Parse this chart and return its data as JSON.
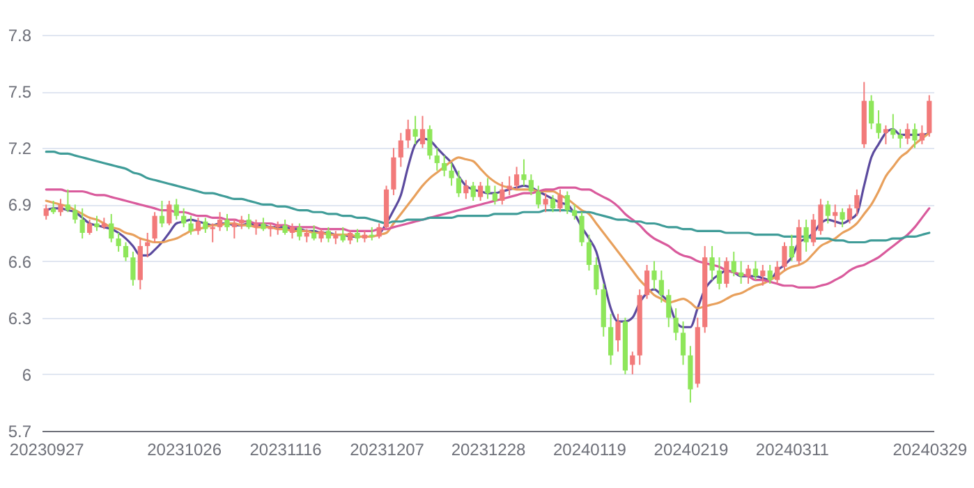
{
  "chart_data": {
    "type": "candlestick",
    "grid": "y",
    "ylim": [
      5.7,
      7.8
    ],
    "yticks": [
      5.7,
      6,
      6.3,
      6.6,
      6.9,
      7.2,
      7.5,
      7.8
    ],
    "categories": [
      "20230927",
      null,
      null,
      null,
      null,
      null,
      null,
      null,
      null,
      null,
      null,
      null,
      null,
      null,
      null,
      null,
      null,
      null,
      null,
      "20231026",
      null,
      null,
      null,
      null,
      null,
      null,
      null,
      null,
      null,
      null,
      null,
      null,
      null,
      "20231116",
      null,
      null,
      null,
      null,
      null,
      null,
      null,
      null,
      null,
      null,
      null,
      null,
      null,
      "20231207",
      null,
      null,
      null,
      null,
      null,
      null,
      null,
      null,
      null,
      null,
      null,
      null,
      null,
      "20231228",
      null,
      null,
      null,
      null,
      null,
      null,
      null,
      null,
      null,
      null,
      null,
      null,
      null,
      "20240119",
      null,
      null,
      null,
      null,
      null,
      null,
      null,
      null,
      null,
      null,
      null,
      null,
      null,
      "20240219",
      null,
      null,
      null,
      null,
      null,
      null,
      null,
      null,
      null,
      null,
      null,
      null,
      null,
      "20240311",
      null,
      null,
      null,
      null,
      null,
      null,
      null,
      null,
      null,
      null,
      null,
      null,
      null,
      null,
      null,
      null,
      null,
      null,
      "20240329"
    ],
    "ohlc": [
      [
        6.84,
        6.9,
        6.82,
        6.88
      ],
      [
        6.88,
        6.92,
        6.85,
        6.86
      ],
      [
        6.86,
        6.93,
        6.84,
        6.9
      ],
      [
        6.9,
        6.98,
        6.86,
        6.87
      ],
      [
        6.87,
        6.9,
        6.8,
        6.82
      ],
      [
        6.82,
        6.88,
        6.72,
        6.75
      ],
      [
        6.75,
        6.82,
        6.74,
        6.8
      ],
      [
        6.8,
        6.84,
        6.76,
        6.78
      ],
      [
        6.78,
        6.83,
        6.77,
        6.8
      ],
      [
        6.8,
        6.85,
        6.7,
        6.72
      ],
      [
        6.72,
        6.75,
        6.65,
        6.68
      ],
      [
        6.68,
        6.7,
        6.6,
        6.62
      ],
      [
        6.62,
        6.65,
        6.47,
        6.5
      ],
      [
        6.5,
        6.72,
        6.45,
        6.68
      ],
      [
        6.68,
        6.75,
        6.62,
        6.7
      ],
      [
        6.72,
        6.86,
        6.7,
        6.84
      ],
      [
        6.84,
        6.92,
        6.78,
        6.8
      ],
      [
        6.8,
        6.92,
        6.79,
        6.9
      ],
      [
        6.9,
        6.93,
        6.82,
        6.84
      ],
      [
        6.84,
        6.88,
        6.78,
        6.8
      ],
      [
        6.8,
        6.84,
        6.74,
        6.76
      ],
      [
        6.76,
        6.83,
        6.74,
        6.81
      ],
      [
        6.81,
        6.83,
        6.75,
        6.77
      ],
      [
        6.77,
        6.8,
        6.7,
        6.78
      ],
      [
        6.78,
        6.86,
        6.76,
        6.82
      ],
      [
        6.82,
        6.85,
        6.76,
        6.78
      ],
      [
        6.78,
        6.82,
        6.72,
        6.8
      ],
      [
        6.8,
        6.84,
        6.77,
        6.82
      ],
      [
        6.82,
        6.85,
        6.77,
        6.78
      ],
      [
        6.78,
        6.82,
        6.74,
        6.8
      ],
      [
        6.8,
        6.83,
        6.76,
        6.77
      ],
      [
        6.77,
        6.8,
        6.73,
        6.78
      ],
      [
        6.78,
        6.81,
        6.74,
        6.79
      ],
      [
        6.79,
        6.82,
        6.74,
        6.75
      ],
      [
        6.75,
        6.8,
        6.72,
        6.78
      ],
      [
        6.78,
        6.8,
        6.71,
        6.73
      ],
      [
        6.73,
        6.77,
        6.7,
        6.75
      ],
      [
        6.75,
        6.79,
        6.71,
        6.72
      ],
      [
        6.72,
        6.77,
        6.7,
        6.76
      ],
      [
        6.76,
        6.78,
        6.7,
        6.72
      ],
      [
        6.72,
        6.76,
        6.69,
        6.74
      ],
      [
        6.74,
        6.78,
        6.7,
        6.71
      ],
      [
        6.71,
        6.76,
        6.69,
        6.75
      ],
      [
        6.75,
        6.77,
        6.7,
        6.72
      ],
      [
        6.72,
        6.76,
        6.7,
        6.74
      ],
      [
        6.74,
        6.78,
        6.71,
        6.73
      ],
      [
        6.73,
        6.8,
        6.72,
        6.78
      ],
      [
        6.78,
        7.0,
        6.77,
        6.98
      ],
      [
        6.98,
        7.2,
        6.95,
        7.15
      ],
      [
        7.15,
        7.28,
        7.1,
        7.24
      ],
      [
        7.24,
        7.35,
        7.2,
        7.3
      ],
      [
        7.3,
        7.37,
        7.22,
        7.26
      ],
      [
        7.22,
        7.37,
        7.2,
        7.3
      ],
      [
        7.3,
        7.32,
        7.14,
        7.16
      ],
      [
        7.16,
        7.2,
        7.08,
        7.12
      ],
      [
        7.12,
        7.16,
        7.05,
        7.08
      ],
      [
        7.08,
        7.12,
        7.0,
        7.04
      ],
      [
        7.04,
        7.08,
        6.94,
        6.96
      ],
      [
        6.96,
        7.03,
        6.93,
        7.0
      ],
      [
        7.0,
        7.02,
        6.92,
        6.94
      ],
      [
        6.94,
        7.02,
        6.92,
        7.0
      ],
      [
        7.0,
        7.04,
        6.93,
        6.96
      ],
      [
        6.96,
        7.0,
        6.9,
        6.92
      ],
      [
        6.92,
        7.02,
        6.9,
        6.98
      ],
      [
        6.98,
        7.05,
        6.95,
        7.0
      ],
      [
        7.0,
        7.1,
        6.98,
        7.06
      ],
      [
        7.06,
        7.14,
        7.0,
        7.03
      ],
      [
        7.03,
        7.06,
        6.95,
        6.97
      ],
      [
        6.97,
        7.0,
        6.88,
        6.9
      ],
      [
        6.9,
        6.96,
        6.86,
        6.93
      ],
      [
        6.93,
        6.95,
        6.86,
        6.88
      ],
      [
        6.88,
        6.98,
        6.86,
        6.95
      ],
      [
        6.95,
        6.97,
        6.85,
        6.87
      ],
      [
        6.87,
        6.9,
        6.82,
        6.84
      ],
      [
        6.84,
        6.86,
        6.68,
        6.7
      ],
      [
        6.7,
        6.74,
        6.55,
        6.58
      ],
      [
        6.58,
        6.62,
        6.42,
        6.45
      ],
      [
        6.45,
        6.48,
        6.2,
        6.25
      ],
      [
        6.25,
        6.32,
        6.05,
        6.1
      ],
      [
        6.18,
        6.32,
        6.12,
        6.28
      ],
      [
        6.28,
        6.3,
        6.0,
        6.02
      ],
      [
        6.05,
        6.12,
        6.0,
        6.1
      ],
      [
        6.1,
        6.45,
        6.05,
        6.42
      ],
      [
        6.42,
        6.58,
        6.4,
        6.55
      ],
      [
        6.55,
        6.6,
        6.45,
        6.5
      ],
      [
        6.5,
        6.55,
        6.38,
        6.42
      ],
      [
        6.42,
        6.45,
        6.25,
        6.3
      ],
      [
        6.3,
        6.35,
        6.18,
        6.22
      ],
      [
        6.22,
        6.28,
        6.05,
        6.1
      ],
      [
        6.1,
        6.15,
        5.85,
        5.92
      ],
      [
        5.95,
        6.3,
        5.93,
        6.25
      ],
      [
        6.25,
        6.68,
        6.22,
        6.62
      ],
      [
        6.62,
        6.68,
        6.5,
        6.55
      ],
      [
        6.55,
        6.62,
        6.45,
        6.48
      ],
      [
        6.48,
        6.62,
        6.46,
        6.6
      ],
      [
        6.6,
        6.65,
        6.52,
        6.54
      ],
      [
        6.54,
        6.6,
        6.48,
        6.52
      ],
      [
        6.52,
        6.58,
        6.48,
        6.56
      ],
      [
        6.56,
        6.6,
        6.5,
        6.52
      ],
      [
        6.52,
        6.58,
        6.47,
        6.55
      ],
      [
        6.55,
        6.58,
        6.48,
        6.5
      ],
      [
        6.5,
        6.6,
        6.48,
        6.57
      ],
      [
        6.57,
        6.7,
        6.55,
        6.68
      ],
      [
        6.68,
        6.74,
        6.6,
        6.62
      ],
      [
        6.6,
        6.82,
        6.58,
        6.78
      ],
      [
        6.78,
        6.82,
        6.65,
        6.7
      ],
      [
        6.7,
        6.85,
        6.68,
        6.82
      ],
      [
        6.76,
        6.93,
        6.74,
        6.9
      ],
      [
        6.9,
        6.92,
        6.8,
        6.84
      ],
      [
        6.84,
        6.9,
        6.78,
        6.86
      ],
      [
        6.86,
        6.88,
        6.78,
        6.82
      ],
      [
        6.82,
        6.9,
        6.8,
        6.88
      ],
      [
        6.88,
        6.98,
        6.84,
        6.95
      ],
      [
        7.22,
        7.55,
        7.2,
        7.45
      ],
      [
        7.45,
        7.48,
        7.3,
        7.33
      ],
      [
        7.33,
        7.4,
        7.25,
        7.28
      ],
      [
        7.28,
        7.32,
        7.22,
        7.3
      ],
      [
        7.3,
        7.38,
        7.25,
        7.27
      ],
      [
        7.27,
        7.3,
        7.2,
        7.25
      ],
      [
        7.25,
        7.33,
        7.22,
        7.3
      ],
      [
        7.3,
        7.33,
        7.2,
        7.24
      ],
      [
        7.24,
        7.32,
        7.22,
        7.28
      ],
      [
        7.28,
        7.48,
        7.26,
        7.45
      ]
    ],
    "colors": [
      "#f27a7a",
      "#8ee65a",
      "#f27a7a",
      "#8ee65a",
      "#8ee65a",
      "#8ee65a",
      "#f27a7a",
      "#8ee65a",
      "#f27a7a",
      "#8ee65a",
      "#8ee65a",
      "#8ee65a",
      "#8ee65a",
      "#f27a7a",
      "#f27a7a",
      "#f27a7a",
      "#8ee65a",
      "#f27a7a",
      "#8ee65a",
      "#8ee65a",
      "#8ee65a",
      "#f27a7a",
      "#8ee65a",
      "#f27a7a",
      "#f27a7a",
      "#8ee65a",
      "#f27a7a",
      "#f27a7a",
      "#8ee65a",
      "#f27a7a",
      "#8ee65a",
      "#f27a7a",
      "#f27a7a",
      "#8ee65a",
      "#f27a7a",
      "#8ee65a",
      "#f27a7a",
      "#8ee65a",
      "#f27a7a",
      "#8ee65a",
      "#f27a7a",
      "#8ee65a",
      "#f27a7a",
      "#8ee65a",
      "#f27a7a",
      "#8ee65a",
      "#f27a7a",
      "#f27a7a",
      "#f27a7a",
      "#f27a7a",
      "#f27a7a",
      "#8ee65a",
      "#f27a7a",
      "#8ee65a",
      "#8ee65a",
      "#8ee65a",
      "#8ee65a",
      "#8ee65a",
      "#f27a7a",
      "#8ee65a",
      "#f27a7a",
      "#8ee65a",
      "#8ee65a",
      "#f27a7a",
      "#f27a7a",
      "#f27a7a",
      "#8ee65a",
      "#8ee65a",
      "#8ee65a",
      "#f27a7a",
      "#8ee65a",
      "#f27a7a",
      "#8ee65a",
      "#8ee65a",
      "#8ee65a",
      "#8ee65a",
      "#8ee65a",
      "#8ee65a",
      "#8ee65a",
      "#f27a7a",
      "#8ee65a",
      "#f27a7a",
      "#f27a7a",
      "#f27a7a",
      "#8ee65a",
      "#8ee65a",
      "#8ee65a",
      "#8ee65a",
      "#8ee65a",
      "#8ee65a",
      "#f27a7a",
      "#f27a7a",
      "#8ee65a",
      "#8ee65a",
      "#f27a7a",
      "#8ee65a",
      "#8ee65a",
      "#f27a7a",
      "#8ee65a",
      "#f27a7a",
      "#8ee65a",
      "#f27a7a",
      "#f27a7a",
      "#8ee65a",
      "#f27a7a",
      "#8ee65a",
      "#f27a7a",
      "#f27a7a",
      "#8ee65a",
      "#f27a7a",
      "#8ee65a",
      "#f27a7a",
      "#f27a7a",
      "#f27a7a",
      "#8ee65a",
      "#8ee65a",
      "#f27a7a",
      "#8ee65a",
      "#8ee65a",
      "#f27a7a",
      "#8ee65a",
      "#f27a7a",
      "#f27a7a"
    ],
    "series": [
      {
        "type": "line",
        "color": "#5b4a9e",
        "values": [
          6.87,
          6.88,
          6.88,
          6.87,
          6.86,
          6.83,
          6.8,
          6.79,
          6.78,
          6.77,
          6.75,
          6.72,
          6.68,
          6.63,
          6.63,
          6.66,
          6.7,
          6.75,
          6.8,
          6.81,
          6.82,
          6.81,
          6.8,
          6.79,
          6.8,
          6.8,
          6.79,
          6.79,
          6.8,
          6.79,
          6.79,
          6.78,
          6.78,
          6.78,
          6.77,
          6.77,
          6.76,
          6.76,
          6.75,
          6.75,
          6.74,
          6.74,
          6.73,
          6.73,
          null,
          null,
          6.74,
          6.8,
          6.87,
          6.95,
          7.1,
          7.22,
          7.25,
          7.24,
          7.2,
          7.16,
          7.12,
          7.05,
          7.0,
          6.98,
          6.97,
          6.96,
          6.96,
          6.97,
          6.98,
          6.99,
          7.0,
          6.99,
          6.97,
          6.95,
          6.93,
          6.91,
          6.9,
          6.85,
          6.78,
          6.72,
          6.65,
          6.5,
          6.35,
          6.28,
          6.28,
          6.3,
          6.38,
          6.43,
          6.45,
          6.42,
          6.38,
          6.28,
          6.25,
          6.25,
          6.35,
          6.45,
          6.5,
          6.53,
          6.55,
          6.54,
          6.52,
          6.52,
          6.52,
          6.51,
          6.5,
          6.55,
          6.58,
          6.62,
          6.7,
          6.72,
          6.75,
          6.8,
          6.82,
          6.81,
          6.8,
          6.82,
          6.85,
          7.0,
          7.15,
          7.22,
          7.28,
          7.3,
          7.27,
          7.27,
          7.27,
          7.27,
          7.28
        ]
      },
      {
        "type": "line",
        "color": "#e8a05c",
        "values": [
          6.92,
          6.91,
          6.9,
          6.89,
          6.87,
          6.85,
          6.83,
          6.82,
          6.8,
          6.78,
          6.77,
          6.75,
          6.74,
          6.72,
          6.71,
          6.7,
          6.7,
          6.71,
          6.72,
          6.74,
          6.76,
          6.77,
          6.78,
          6.79,
          6.79,
          6.8,
          6.8,
          6.79,
          6.79,
          6.78,
          6.78,
          6.78,
          6.77,
          6.77,
          6.76,
          6.76,
          6.76,
          6.75,
          6.75,
          6.74,
          6.74,
          6.74,
          6.74,
          6.73,
          6.73,
          6.73,
          6.74,
          6.75,
          6.8,
          6.85,
          6.9,
          6.95,
          7.0,
          7.04,
          7.07,
          7.1,
          7.13,
          7.15,
          7.14,
          7.13,
          7.09,
          7.05,
          7.02,
          7.0,
          6.99,
          6.98,
          6.98,
          6.98,
          6.97,
          6.97,
          6.97,
          6.95,
          6.93,
          6.9,
          6.87,
          6.85,
          6.8,
          6.75,
          6.7,
          6.65,
          6.6,
          6.55,
          6.5,
          6.46,
          6.42,
          6.4,
          6.38,
          6.39,
          6.4,
          6.38,
          6.35,
          6.36,
          6.37,
          6.38,
          6.4,
          6.42,
          6.43,
          6.45,
          6.47,
          6.48,
          6.5,
          6.52,
          6.55,
          6.57,
          6.58,
          6.6,
          6.64,
          6.68,
          6.7,
          6.72,
          6.75,
          6.77,
          6.8,
          6.85,
          6.9,
          6.97,
          7.05,
          7.1,
          7.15,
          7.18,
          7.22,
          7.25,
          7.28
        ]
      },
      {
        "type": "line",
        "color": "#d95a9c",
        "values": [
          6.98,
          6.98,
          6.98,
          6.97,
          6.97,
          6.97,
          6.96,
          6.95,
          6.95,
          6.94,
          6.93,
          6.92,
          6.91,
          6.9,
          6.89,
          6.88,
          6.87,
          6.87,
          6.86,
          6.86,
          6.85,
          6.84,
          6.84,
          6.83,
          6.83,
          6.82,
          6.82,
          6.81,
          6.81,
          6.8,
          6.8,
          6.8,
          6.79,
          6.79,
          6.78,
          6.78,
          6.78,
          6.78,
          6.77,
          6.77,
          6.77,
          6.77,
          6.76,
          6.76,
          6.76,
          6.76,
          6.77,
          6.77,
          6.78,
          6.79,
          6.8,
          6.81,
          6.82,
          6.83,
          6.84,
          6.85,
          6.86,
          6.87,
          6.88,
          6.89,
          6.9,
          6.91,
          6.92,
          6.93,
          6.94,
          6.95,
          6.96,
          6.96,
          6.97,
          6.98,
          6.98,
          6.99,
          6.99,
          6.99,
          6.98,
          6.98,
          6.96,
          6.94,
          6.92,
          6.89,
          6.85,
          6.82,
          6.79,
          6.75,
          6.72,
          6.7,
          6.68,
          6.65,
          6.63,
          6.62,
          6.6,
          6.59,
          6.58,
          6.57,
          6.55,
          6.54,
          6.53,
          6.52,
          6.5,
          6.5,
          6.49,
          6.48,
          6.47,
          6.47,
          6.46,
          6.46,
          6.46,
          6.47,
          6.48,
          6.5,
          6.52,
          6.55,
          6.57,
          6.58,
          6.6,
          6.62,
          6.65,
          6.68,
          6.71,
          6.74,
          6.78,
          6.83,
          6.88
        ]
      },
      {
        "type": "line",
        "color": "#3f9c98",
        "values": [
          7.18,
          7.18,
          7.17,
          7.17,
          7.16,
          7.15,
          7.14,
          7.13,
          7.12,
          7.11,
          7.1,
          7.09,
          7.07,
          7.06,
          7.04,
          7.03,
          7.02,
          7.01,
          7.0,
          6.99,
          6.98,
          6.97,
          6.96,
          6.96,
          6.95,
          6.94,
          6.93,
          6.93,
          6.92,
          6.91,
          6.9,
          6.9,
          6.89,
          6.89,
          6.88,
          6.87,
          6.87,
          6.86,
          6.86,
          6.85,
          6.85,
          6.84,
          6.84,
          6.83,
          6.83,
          6.82,
          6.81,
          6.8,
          6.81,
          6.81,
          6.82,
          6.82,
          6.82,
          6.83,
          6.83,
          6.83,
          6.83,
          6.84,
          6.84,
          6.84,
          6.84,
          6.84,
          6.85,
          6.85,
          6.85,
          6.85,
          6.86,
          6.86,
          6.86,
          6.87,
          6.87,
          6.87,
          6.87,
          6.86,
          6.86,
          6.86,
          6.85,
          6.84,
          6.83,
          6.82,
          6.82,
          6.81,
          6.81,
          6.8,
          6.8,
          6.79,
          6.78,
          6.78,
          6.77,
          6.77,
          6.76,
          6.76,
          6.76,
          6.76,
          6.75,
          6.75,
          6.75,
          6.75,
          6.74,
          6.74,
          6.74,
          6.74,
          6.73,
          6.73,
          6.73,
          6.73,
          6.72,
          6.72,
          6.72,
          6.71,
          6.71,
          6.7,
          6.7,
          6.7,
          6.71,
          6.71,
          6.71,
          6.72,
          6.72,
          6.73,
          6.73,
          6.74,
          6.75
        ]
      }
    ]
  }
}
